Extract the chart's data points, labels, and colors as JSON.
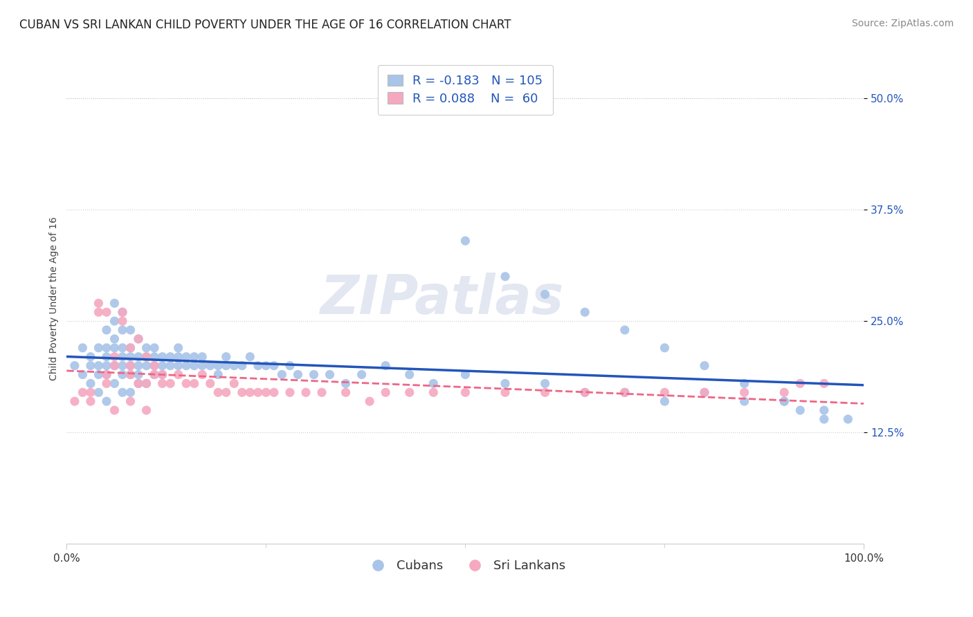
{
  "title": "CUBAN VS SRI LANKAN CHILD POVERTY UNDER THE AGE OF 16 CORRELATION CHART",
  "source": "Source: ZipAtlas.com",
  "ylabel": "Child Poverty Under the Age of 16",
  "xlim": [
    0,
    100
  ],
  "ylim": [
    0,
    55
  ],
  "ytick_vals": [
    12.5,
    25.0,
    37.5,
    50.0
  ],
  "title_fontsize": 12,
  "axis_label_fontsize": 10,
  "tick_fontsize": 11,
  "source_fontsize": 10,
  "background_color": "#ffffff",
  "watermark": "ZIPatlas",
  "cuban_color": "#a8c4e8",
  "srilankan_color": "#f5a8c0",
  "cuban_line_color": "#2255bb",
  "srilankan_line_color": "#ee6688",
  "cuban_R": -0.183,
  "cuban_N": 105,
  "srilankan_R": 0.088,
  "srilankan_N": 60,
  "cuban_x": [
    1,
    2,
    2,
    3,
    3,
    3,
    4,
    4,
    4,
    4,
    5,
    5,
    5,
    5,
    5,
    5,
    6,
    6,
    6,
    6,
    6,
    6,
    7,
    7,
    7,
    7,
    7,
    7,
    7,
    8,
    8,
    8,
    8,
    8,
    8,
    9,
    9,
    9,
    9,
    9,
    10,
    10,
    10,
    10,
    11,
    11,
    11,
    11,
    12,
    12,
    12,
    13,
    13,
    14,
    14,
    14,
    15,
    15,
    16,
    16,
    17,
    17,
    18,
    19,
    19,
    20,
    20,
    21,
    22,
    23,
    24,
    25,
    26,
    27,
    28,
    29,
    31,
    33,
    35,
    37,
    40,
    43,
    46,
    50,
    55,
    60,
    65,
    70,
    75,
    80,
    85,
    90,
    92,
    95,
    98,
    50,
    55,
    60,
    65,
    70,
    75,
    80,
    85,
    90,
    95
  ],
  "cuban_y": [
    20,
    19,
    22,
    20,
    21,
    18,
    22,
    20,
    19,
    17,
    24,
    22,
    20,
    19,
    21,
    16,
    27,
    25,
    23,
    22,
    20,
    18,
    26,
    24,
    22,
    21,
    20,
    19,
    17,
    24,
    22,
    21,
    20,
    19,
    17,
    23,
    21,
    20,
    19,
    18,
    22,
    21,
    20,
    18,
    22,
    21,
    20,
    19,
    21,
    20,
    19,
    21,
    20,
    22,
    21,
    20,
    21,
    20,
    21,
    20,
    21,
    20,
    20,
    20,
    19,
    21,
    20,
    20,
    20,
    21,
    20,
    20,
    20,
    19,
    20,
    19,
    19,
    19,
    18,
    19,
    20,
    19,
    18,
    19,
    18,
    18,
    17,
    17,
    16,
    17,
    16,
    16,
    15,
    15,
    14,
    34,
    30,
    28,
    26,
    24,
    22,
    20,
    18,
    16,
    14
  ],
  "srilankan_x": [
    1,
    2,
    3,
    4,
    4,
    5,
    5,
    5,
    6,
    6,
    7,
    7,
    8,
    8,
    8,
    9,
    9,
    10,
    10,
    11,
    11,
    12,
    12,
    13,
    14,
    15,
    16,
    17,
    18,
    19,
    20,
    21,
    22,
    23,
    24,
    25,
    26,
    28,
    30,
    32,
    35,
    38,
    40,
    43,
    46,
    50,
    55,
    60,
    65,
    70,
    75,
    80,
    85,
    90,
    92,
    95,
    3,
    6,
    8,
    10
  ],
  "srilankan_y": [
    16,
    17,
    17,
    27,
    26,
    19,
    18,
    26,
    21,
    20,
    26,
    25,
    22,
    20,
    19,
    23,
    18,
    21,
    18,
    20,
    19,
    19,
    18,
    18,
    19,
    18,
    18,
    19,
    18,
    17,
    17,
    18,
    17,
    17,
    17,
    17,
    17,
    17,
    17,
    17,
    17,
    16,
    17,
    17,
    17,
    17,
    17,
    17,
    17,
    17,
    17,
    17,
    17,
    17,
    18,
    18,
    16,
    15,
    16,
    15
  ]
}
